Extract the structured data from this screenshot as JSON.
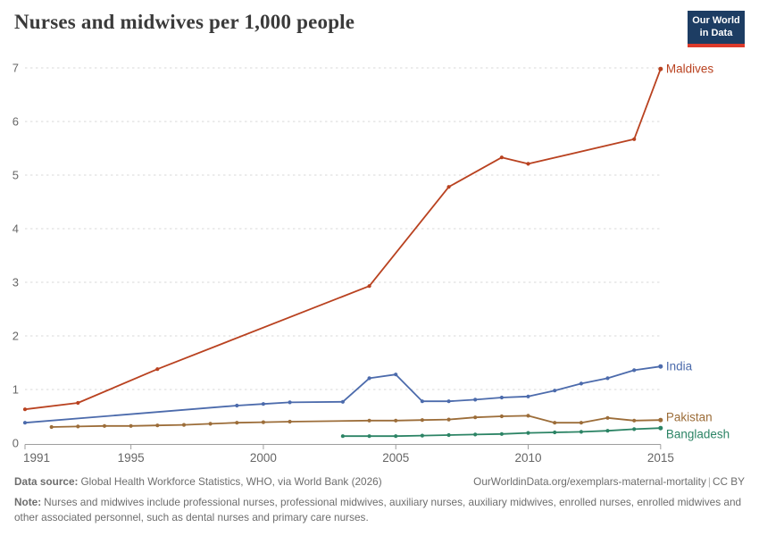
{
  "header": {
    "title": "Nurses and midwives per 1,000 people",
    "logo_line1": "Our World",
    "logo_line2": "in Data"
  },
  "chart_data": {
    "type": "line",
    "title": "Nurses and midwives per 1,000 people",
    "xlabel": "",
    "ylabel": "",
    "xlim": [
      1991,
      2015.6
    ],
    "ylim": [
      0,
      7
    ],
    "x_ticks": [
      1991,
      1995,
      2000,
      2005,
      2010,
      2015
    ],
    "y_ticks": [
      0,
      1,
      2,
      3,
      4,
      5,
      6,
      7
    ],
    "grid": "horizontal-dashed",
    "legend_position": "end-of-line-labels-right",
    "colors": {
      "grid": "#d9d9d9",
      "axis": "#9e9e9e",
      "tick_text": "#666666"
    },
    "series": [
      {
        "name": "Maldives",
        "color": "#b94220",
        "label_dy": 0,
        "points": [
          [
            1991,
            0.63
          ],
          [
            1993,
            0.75
          ],
          [
            1996,
            1.38
          ],
          [
            2004,
            2.93
          ],
          [
            2007,
            4.78
          ],
          [
            2009,
            5.33
          ],
          [
            2010,
            5.21
          ],
          [
            2014,
            5.67
          ],
          [
            2015,
            6.98
          ]
        ]
      },
      {
        "name": "India",
        "color": "#4c6bac",
        "label_dy": 0,
        "points": [
          [
            1991,
            0.38
          ],
          [
            1999,
            0.7
          ],
          [
            2000,
            0.73
          ],
          [
            2001,
            0.76
          ],
          [
            2003,
            0.77
          ],
          [
            2004,
            1.21
          ],
          [
            2005,
            1.28
          ],
          [
            2006,
            0.78
          ],
          [
            2007,
            0.78
          ],
          [
            2008,
            0.81
          ],
          [
            2009,
            0.85
          ],
          [
            2010,
            0.87
          ],
          [
            2011,
            0.98
          ],
          [
            2012,
            1.11
          ],
          [
            2013,
            1.21
          ],
          [
            2014,
            1.36
          ],
          [
            2015,
            1.43
          ]
        ]
      },
      {
        "name": "Pakistan",
        "color": "#9c6d39",
        "label_dy": -3,
        "points": [
          [
            1992,
            0.3
          ],
          [
            1993,
            0.31
          ],
          [
            1994,
            0.32
          ],
          [
            1995,
            0.32
          ],
          [
            1996,
            0.33
          ],
          [
            1997,
            0.34
          ],
          [
            1998,
            0.36
          ],
          [
            1999,
            0.38
          ],
          [
            2000,
            0.39
          ],
          [
            2001,
            0.4
          ],
          [
            2004,
            0.42
          ],
          [
            2005,
            0.42
          ],
          [
            2006,
            0.43
          ],
          [
            2007,
            0.44
          ],
          [
            2008,
            0.48
          ],
          [
            2009,
            0.5
          ],
          [
            2010,
            0.51
          ],
          [
            2011,
            0.38
          ],
          [
            2012,
            0.38
          ],
          [
            2013,
            0.47
          ],
          [
            2014,
            0.42
          ],
          [
            2015,
            0.43
          ]
        ]
      },
      {
        "name": "Bangladesh",
        "color": "#2c8465",
        "label_dy": 7,
        "points": [
          [
            2003,
            0.13
          ],
          [
            2004,
            0.13
          ],
          [
            2005,
            0.13
          ],
          [
            2006,
            0.14
          ],
          [
            2007,
            0.15
          ],
          [
            2008,
            0.16
          ],
          [
            2009,
            0.17
          ],
          [
            2010,
            0.19
          ],
          [
            2011,
            0.2
          ],
          [
            2012,
            0.21
          ],
          [
            2013,
            0.23
          ],
          [
            2014,
            0.26
          ],
          [
            2015,
            0.28
          ]
        ]
      }
    ]
  },
  "footer": {
    "source_label": "Data source:",
    "source_text": "Global Health Workforce Statistics, WHO, via World Bank (2026)",
    "link_text": "OurWorldinData.org/exemplars-maternal-mortality",
    "license": "CC BY",
    "note_label": "Note:",
    "note_text": "Nurses and midwives include professional nurses, professional midwives, auxiliary nurses, auxiliary midwives, enrolled nurses, enrolled midwives and other associated personnel, such as dental nurses and primary care nurses."
  }
}
